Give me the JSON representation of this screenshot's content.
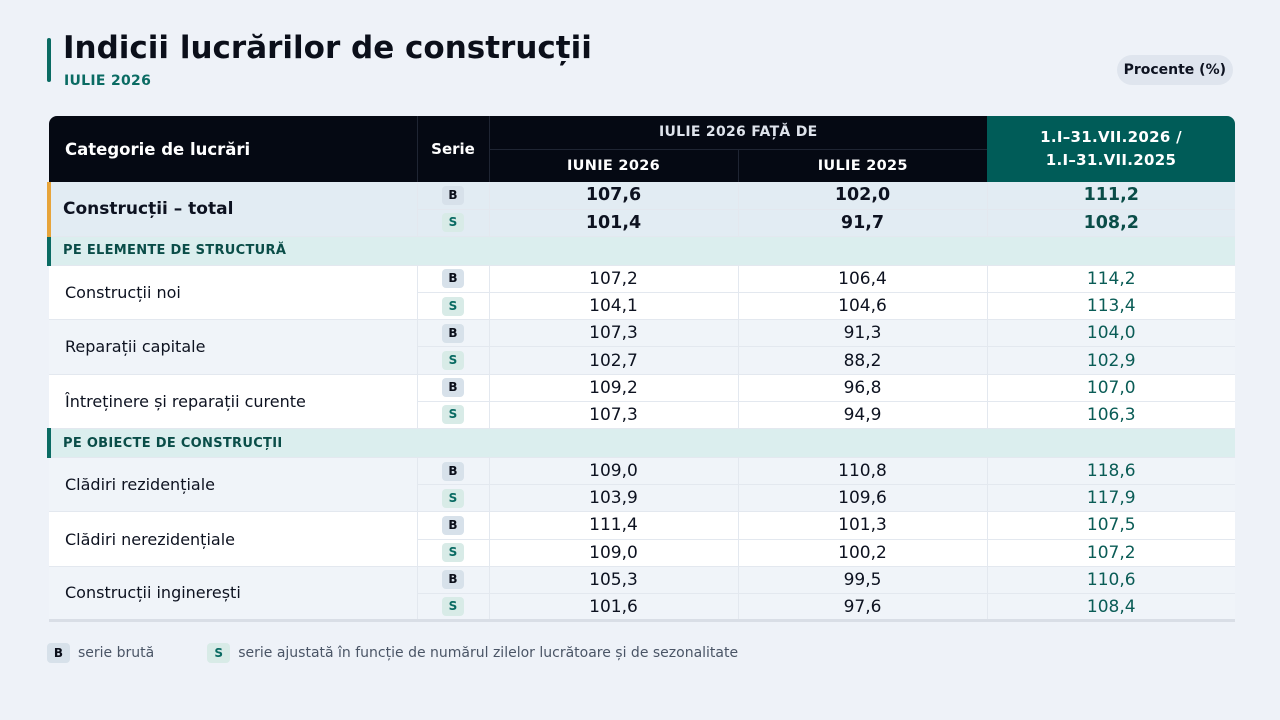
{
  "header": {
    "title": "Indicii lucrărilor de construcții",
    "subtitle": "IULIE 2026",
    "units_badge": "Procente (%)"
  },
  "table": {
    "col_category": "Categorie de lucrări",
    "col_serie": "Serie",
    "col_group": "IULIE 2026 FAȚĂ DE",
    "col_prev_month": "IUNIE 2026",
    "col_prev_year": "IULIE 2025",
    "col_cumulative_line1": "1.I–31.VII.2026 /",
    "col_cumulative_line2": "1.I–31.VII.2025",
    "total": {
      "label": "Construcții – total",
      "B": {
        "serie": "B",
        "m": "107,6",
        "y": "102,0",
        "c": "111,2"
      },
      "S": {
        "serie": "S",
        "m": "101,4",
        "y": "91,7",
        "c": "108,2"
      }
    },
    "section1": {
      "title": "PE ELEMENTE DE STRUCTURĂ",
      "rows": [
        {
          "label": "Construcții noi",
          "B": {
            "serie": "B",
            "m": "107,2",
            "y": "106,4",
            "c": "114,2"
          },
          "S": {
            "serie": "S",
            "m": "104,1",
            "y": "104,6",
            "c": "113,4"
          }
        },
        {
          "label": "Reparații capitale",
          "B": {
            "serie": "B",
            "m": "107,3",
            "y": "91,3",
            "c": "104,0"
          },
          "S": {
            "serie": "S",
            "m": "102,7",
            "y": "88,2",
            "c": "102,9"
          }
        },
        {
          "label": "Întreținere și reparații curente",
          "B": {
            "serie": "B",
            "m": "109,2",
            "y": "96,8",
            "c": "107,0"
          },
          "S": {
            "serie": "S",
            "m": "107,3",
            "y": "94,9",
            "c": "106,3"
          }
        }
      ]
    },
    "section2": {
      "title": "PE OBIECTE DE CONSTRUCȚII",
      "rows": [
        {
          "label": "Clădiri rezidențiale",
          "B": {
            "serie": "B",
            "m": "109,0",
            "y": "110,8",
            "c": "118,6"
          },
          "S": {
            "serie": "S",
            "m": "103,9",
            "y": "109,6",
            "c": "117,9"
          }
        },
        {
          "label": "Clădiri nerezidențiale",
          "B": {
            "serie": "B",
            "m": "111,4",
            "y": "101,3",
            "c": "107,5"
          },
          "S": {
            "serie": "S",
            "m": "109,0",
            "y": "100,2",
            "c": "107,2"
          }
        },
        {
          "label": "Construcții inginerești",
          "B": {
            "serie": "B",
            "m": "105,3",
            "y": "99,5",
            "c": "110,6"
          },
          "S": {
            "serie": "S",
            "m": "101,6",
            "y": "97,6",
            "c": "108,4"
          }
        }
      ]
    }
  },
  "legend": {
    "b_tag": "B",
    "b_text": "serie brută",
    "s_tag": "S",
    "s_text": "serie ajustată în funcție de numărul zilelor lucrătoare și de sezonalitate"
  }
}
